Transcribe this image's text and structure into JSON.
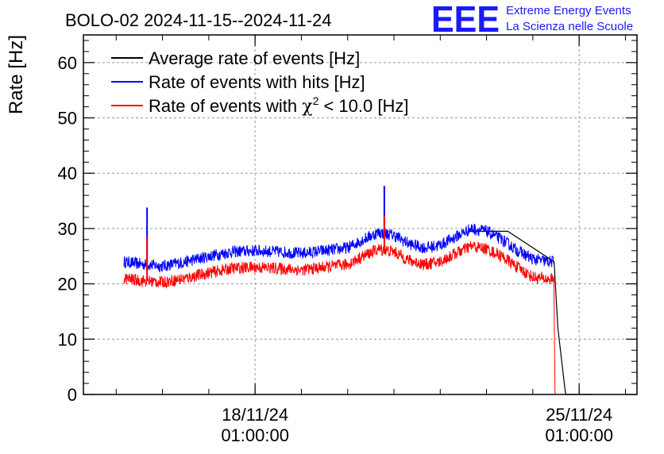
{
  "header": {
    "title": "BOLO-02 2024-11-15--2024-11-24",
    "logo_text": "EEE",
    "org_line1": "Extreme Energy Events",
    "org_line2": "La Scienza nelle Scuole"
  },
  "chart_data": {
    "type": "line",
    "title": "BOLO-02 2024-11-15--2024-11-24",
    "ylabel": "Rate [Hz]",
    "xlabel": "",
    "ylim": [
      0,
      65
    ],
    "xlim": [
      "2024-11-14T08:00:00",
      "2024-11-26T07:00:00"
    ],
    "grid": true,
    "legend_position": "top-left",
    "y_ticks": [
      {
        "value": 0,
        "label": "0"
      },
      {
        "value": 10,
        "label": "10"
      },
      {
        "value": 20,
        "label": "20"
      },
      {
        "value": 30,
        "label": "30"
      },
      {
        "value": 40,
        "label": "40"
      },
      {
        "value": 50,
        "label": "50"
      },
      {
        "value": 60,
        "label": "60"
      }
    ],
    "x_ticks": [
      {
        "value": "2024-11-18T01:00:00",
        "date_label": "18/11/24",
        "time_label": "01:00:00"
      },
      {
        "value": "2024-11-25T01:00:00",
        "date_label": "25/11/24",
        "time_label": "01:00:00"
      }
    ],
    "legend": {
      "entries": [
        {
          "label": "Average rate of events [Hz]",
          "color": "#000000"
        },
        {
          "label": "Rate of events with hits [Hz]",
          "color": "#0000ff"
        },
        {
          "label_prefix": "Rate of events with ",
          "symbol": "χ",
          "superscript": "2",
          "label_suffix": " < 10.0 [Hz]",
          "color": "#ff0000"
        }
      ]
    },
    "series": [
      {
        "name": "Average rate of events [Hz]",
        "color": "#000000",
        "points": [
          [
            "2024-11-22T16:00:00",
            29.5
          ],
          [
            "2024-11-23T12:00:00",
            29.5
          ],
          [
            "2024-11-24T12:00:00",
            24.0
          ],
          [
            "2024-11-24T14:00:00",
            12.0
          ],
          [
            "2024-11-24T18:00:00",
            0.0
          ],
          [
            "2024-11-25T08:00:00",
            0.0
          ]
        ]
      },
      {
        "name": "Rate of events with hits [Hz]",
        "color": "#0000ff",
        "noise": 1.1,
        "points": [
          [
            "2024-11-15T05:00:00",
            24.0
          ],
          [
            "2024-11-15T13:00:00",
            23.6
          ],
          [
            "2024-11-16T01:00:00",
            23.2
          ],
          [
            "2024-11-16T13:00:00",
            24.0
          ],
          [
            "2024-11-17T01:00:00",
            25.0
          ],
          [
            "2024-11-17T13:00:00",
            25.8
          ],
          [
            "2024-11-18T01:00:00",
            26.0
          ],
          [
            "2024-11-18T13:00:00",
            25.8
          ],
          [
            "2024-11-19T01:00:00",
            25.5
          ],
          [
            "2024-11-19T13:00:00",
            26.0
          ],
          [
            "2024-11-20T01:00:00",
            26.5
          ],
          [
            "2024-11-20T09:00:00",
            28.0
          ],
          [
            "2024-11-20T17:00:00",
            29.3
          ],
          [
            "2024-11-21T01:00:00",
            28.8
          ],
          [
            "2024-11-21T09:00:00",
            27.2
          ],
          [
            "2024-11-21T17:00:00",
            26.5
          ],
          [
            "2024-11-22T01:00:00",
            27.0
          ],
          [
            "2024-11-22T09:00:00",
            28.5
          ],
          [
            "2024-11-22T17:00:00",
            30.0
          ],
          [
            "2024-11-23T01:00:00",
            29.5
          ],
          [
            "2024-11-23T09:00:00",
            28.0
          ],
          [
            "2024-11-23T17:00:00",
            26.0
          ],
          [
            "2024-11-24T01:00:00",
            24.5
          ],
          [
            "2024-11-24T09:00:00",
            24.0
          ],
          [
            "2024-11-24T12:00:00",
            24.0
          ]
        ],
        "spikes": [
          [
            "2024-11-15T17:00:00",
            33.8
          ],
          [
            "2024-11-20T20:00:00",
            37.7
          ]
        ]
      },
      {
        "name": "Rate of events with χ2 < 10.0 [Hz]",
        "color": "#ff0000",
        "noise": 1.1,
        "points": [
          [
            "2024-11-15T05:00:00",
            21.0
          ],
          [
            "2024-11-15T13:00:00",
            20.6
          ],
          [
            "2024-11-16T01:00:00",
            20.3
          ],
          [
            "2024-11-16T13:00:00",
            21.0
          ],
          [
            "2024-11-17T01:00:00",
            22.0
          ],
          [
            "2024-11-17T13:00:00",
            22.8
          ],
          [
            "2024-11-18T01:00:00",
            23.0
          ],
          [
            "2024-11-18T13:00:00",
            22.8
          ],
          [
            "2024-11-19T01:00:00",
            22.5
          ],
          [
            "2024-11-19T13:00:00",
            23.0
          ],
          [
            "2024-11-20T01:00:00",
            23.5
          ],
          [
            "2024-11-20T09:00:00",
            25.0
          ],
          [
            "2024-11-20T17:00:00",
            26.3
          ],
          [
            "2024-11-21T01:00:00",
            25.8
          ],
          [
            "2024-11-21T09:00:00",
            24.2
          ],
          [
            "2024-11-21T17:00:00",
            23.5
          ],
          [
            "2024-11-22T01:00:00",
            24.0
          ],
          [
            "2024-11-22T09:00:00",
            25.5
          ],
          [
            "2024-11-22T17:00:00",
            26.8
          ],
          [
            "2024-11-23T01:00:00",
            26.3
          ],
          [
            "2024-11-23T09:00:00",
            25.0
          ],
          [
            "2024-11-23T17:00:00",
            23.0
          ],
          [
            "2024-11-24T01:00:00",
            21.2
          ],
          [
            "2024-11-24T09:00:00",
            20.8
          ],
          [
            "2024-11-24T12:00:00",
            21.0
          ],
          [
            "2024-11-24T12:30:00",
            0.0
          ],
          [
            "2024-11-25T08:00:00",
            0.0
          ]
        ],
        "spikes": [
          [
            "2024-11-15T17:00:00",
            28.5
          ],
          [
            "2024-11-20T20:00:00",
            32.3
          ]
        ]
      }
    ]
  }
}
